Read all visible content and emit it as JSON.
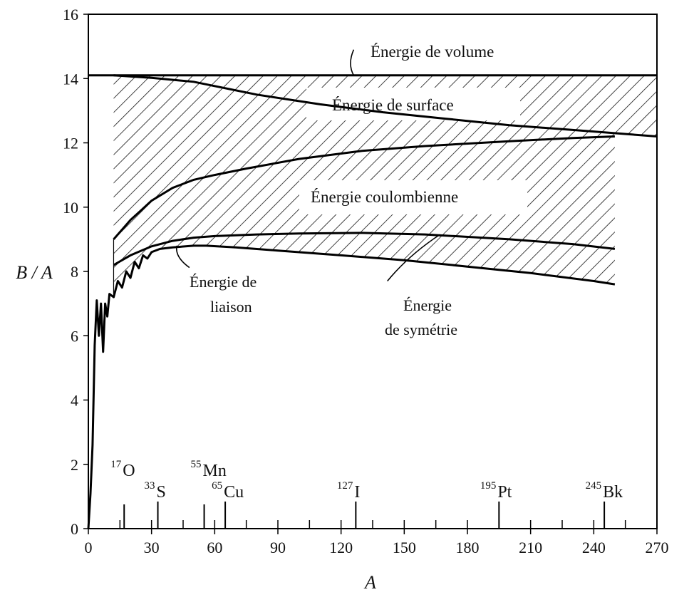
{
  "chart_data": {
    "type": "area",
    "xlabel": "A",
    "ylabel": "B / A",
    "xlim": [
      0,
      270
    ],
    "ylim": [
      0,
      16
    ],
    "x_ticks": [
      0,
      30,
      60,
      90,
      120,
      150,
      180,
      210,
      240,
      270
    ],
    "x_tick_labels": [
      "0",
      "30",
      "60",
      "90",
      "120",
      "150",
      "180",
      "210",
      "240",
      "270"
    ],
    "y_ticks": [
      0,
      2,
      4,
      6,
      8,
      10,
      12,
      14,
      16
    ],
    "y_tick_labels": [
      "0",
      "2",
      "4",
      "6",
      "8",
      "10",
      "12",
      "14",
      "16"
    ],
    "x_minor_ticks": [
      15,
      30,
      45,
      60,
      75,
      90,
      105,
      120,
      135,
      150,
      165,
      180,
      195,
      210,
      225,
      240,
      255
    ],
    "grid": false,
    "series": [
      {
        "name": "Énergie de volume",
        "x": [
          0,
          270
        ],
        "y": [
          14.1,
          14.1
        ]
      },
      {
        "x": [
          12,
          30,
          50,
          80,
          110,
          140,
          170,
          200,
          230,
          270
        ],
        "y": [
          14.1,
          14.02,
          13.9,
          13.5,
          13.2,
          12.95,
          12.75,
          12.55,
          12.4,
          12.2
        ]
      },
      {
        "x": [
          12,
          16,
          20,
          25,
          30,
          40,
          50,
          60,
          75,
          100,
          130,
          160,
          200,
          230,
          250
        ],
        "y": [
          9.0,
          9.3,
          9.6,
          9.9,
          10.2,
          10.6,
          10.85,
          11.0,
          11.2,
          11.5,
          11.75,
          11.9,
          12.05,
          12.15,
          12.2
        ]
      },
      {
        "x": [
          12,
          20,
          30,
          40,
          50,
          60,
          80,
          100,
          130,
          160,
          200,
          230,
          250
        ],
        "y": [
          8.2,
          8.5,
          8.78,
          8.95,
          9.05,
          9.1,
          9.15,
          9.18,
          9.2,
          9.15,
          9.0,
          8.85,
          8.7
        ]
      },
      {
        "name": "Énergie de liaison",
        "x": [
          0,
          1,
          2,
          3,
          4,
          5,
          6,
          7,
          8,
          9,
          10,
          12,
          14,
          16,
          18,
          20,
          22,
          24,
          26,
          28,
          30,
          34,
          40,
          50,
          56,
          70,
          90,
          120,
          150,
          180,
          210,
          240,
          250
        ],
        "y": [
          0,
          1.1,
          2.6,
          5.7,
          7.1,
          6.0,
          7.0,
          5.5,
          7.0,
          6.6,
          7.3,
          7.2,
          7.7,
          7.5,
          8.0,
          7.8,
          8.3,
          8.1,
          8.5,
          8.4,
          8.6,
          8.7,
          8.75,
          8.8,
          8.8,
          8.75,
          8.65,
          8.5,
          8.35,
          8.15,
          7.95,
          7.7,
          7.6
        ]
      }
    ],
    "region_labels": [
      "Énergie de volume",
      "Énergie de surface",
      "Énergie coulombienne",
      "Énergie de symétrie",
      "Énergie de liaison"
    ],
    "annotations": {
      "volume": "Énergie de volume",
      "surface": "Énergie de surface",
      "coulomb": "Énergie coulombienne",
      "liaison_line1": "Énergie de",
      "liaison_line2": "liaison",
      "symetrie_line1": "Énergie",
      "symetrie_line2": "de symétrie"
    },
    "nuclides": [
      {
        "mass": "17",
        "symbol": "O",
        "x": 17,
        "row": "high"
      },
      {
        "mass": "33",
        "symbol": "S",
        "x": 33,
        "row": "low"
      },
      {
        "mass": "55",
        "symbol": "Mn",
        "x": 55,
        "row": "high"
      },
      {
        "mass": "65",
        "symbol": "Cu",
        "x": 65,
        "row": "low"
      },
      {
        "mass": "127",
        "symbol": "I",
        "x": 127,
        "row": "low"
      },
      {
        "mass": "195",
        "symbol": "Pt",
        "x": 195,
        "row": "low"
      },
      {
        "mass": "245",
        "symbol": "Bk",
        "x": 245,
        "row": "low"
      }
    ]
  }
}
